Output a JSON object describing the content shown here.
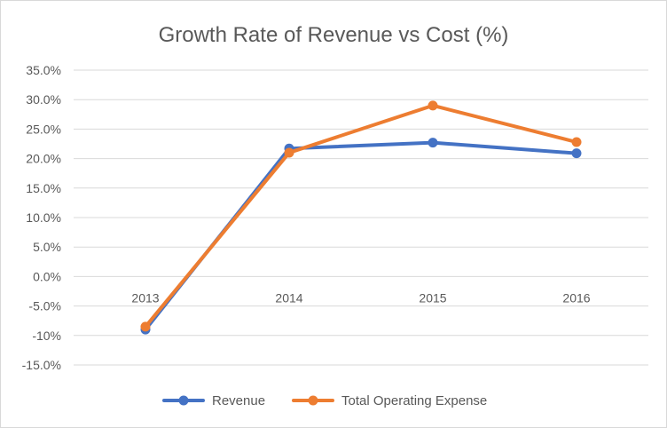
{
  "chart_data": {
    "type": "line",
    "title": "Growth Rate of Revenue vs Cost (%)",
    "categories": [
      "2013",
      "2014",
      "2015",
      "2016"
    ],
    "y_tick_labels": [
      "35.0%",
      "30.0%",
      "25.0%",
      "20.0%",
      "15.0%",
      "10.0%",
      "5.0%",
      "0.0%",
      "-5.0%",
      "-10%",
      "-15.0%"
    ],
    "ylim": [
      -15,
      35
    ],
    "y_step": 5,
    "grid": true,
    "legend_position": "bottom",
    "series": [
      {
        "name": "Revenue",
        "values": [
          -9.0,
          21.7,
          22.7,
          20.9
        ],
        "color": "#4472c4"
      },
      {
        "name": "Total Operating Expense",
        "values": [
          -8.5,
          21.0,
          29.0,
          22.8
        ],
        "color": "#ed7d31"
      }
    ]
  }
}
